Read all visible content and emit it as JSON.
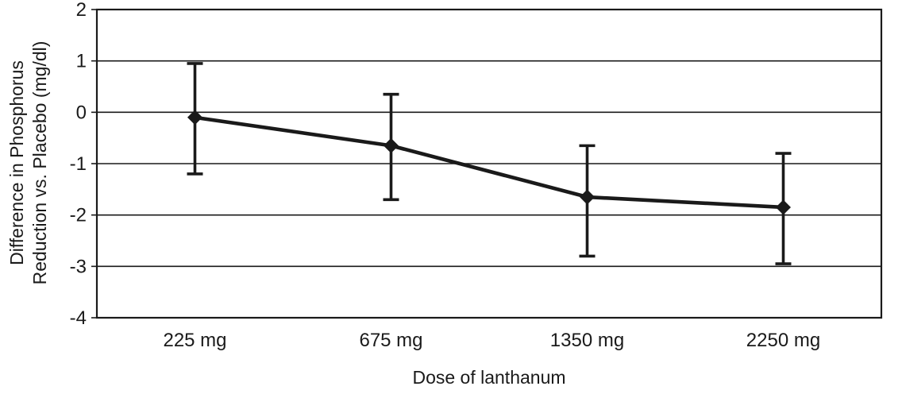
{
  "chart_data": {
    "type": "line",
    "title": "",
    "xlabel": "Dose of lanthanum",
    "ylabel": "Difference in Phosphorus Reduction vs. Placebo (mg/dl)",
    "ylabel_lines": [
      "Difference in Phosphorus",
      "Reduction vs. Placebo (mg/dl)"
    ],
    "categories": [
      "225 mg",
      "675 mg",
      "1350 mg",
      "2250 mg"
    ],
    "values": [
      -0.1,
      -0.65,
      -1.65,
      -1.85
    ],
    "error_upper": [
      0.95,
      0.35,
      -0.65,
      -0.8
    ],
    "error_lower": [
      -1.2,
      -1.7,
      -2.8,
      -2.95
    ],
    "ylim": [
      -4,
      2
    ],
    "yticks": [
      2,
      1,
      0,
      -1,
      -2,
      -3,
      -4
    ],
    "grid": "horizontal",
    "legend": "none",
    "marker": "diamond",
    "line_color": "#1a1a1a",
    "plot_border_color": "#1a1a1a",
    "background_color": "#ffffff"
  }
}
